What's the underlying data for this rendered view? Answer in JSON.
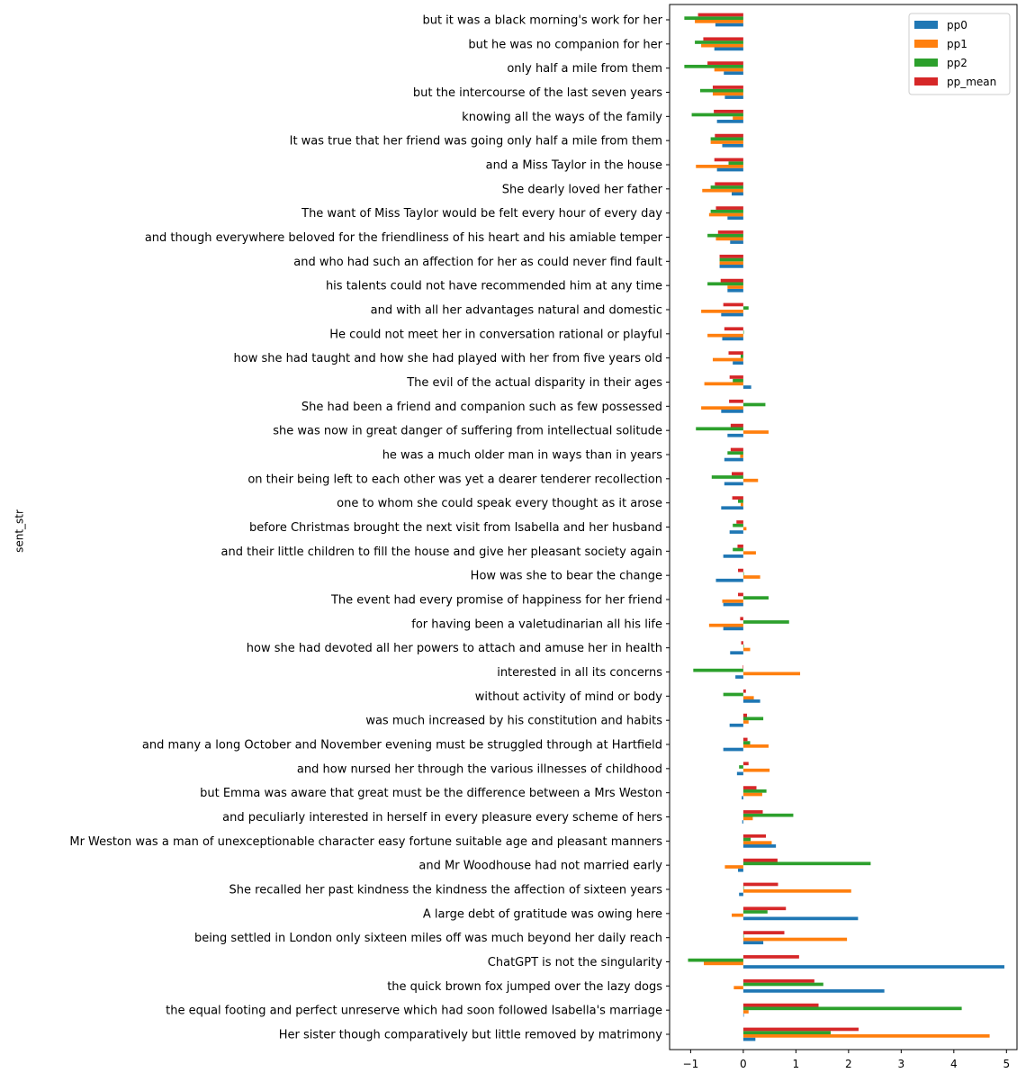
{
  "chart_data": {
    "type": "bar",
    "orientation": "horizontal",
    "ylabel": "sent_str",
    "xlabel": "",
    "xlim": [
      -1.4,
      5.2
    ],
    "xticks": [
      -1,
      0,
      1,
      2,
      3,
      4,
      5
    ],
    "xtick_labels": [
      "−1",
      "0",
      "1",
      "2",
      "3",
      "4",
      "5"
    ],
    "grid": false,
    "legend_position": "top-right",
    "categories": [
      "but it was a black morning's work for her",
      "but he was no companion for her",
      "only half a mile from them",
      "but the intercourse of the last seven years",
      "knowing all the ways of the family",
      "It was true that her friend was going only half a mile from them",
      "and a Miss Taylor in the house",
      "She dearly loved her father",
      "The want of Miss Taylor would be felt every hour of every day",
      "and though everywhere beloved for the friendliness of his heart and his amiable temper",
      "and who had such an affection for her as could never find fault",
      "his talents could not have recommended him at any time",
      "and with all her advantages natural and domestic",
      "He could not meet her in conversation rational or playful",
      "how she had taught and how she had played with her from five years old",
      "The evil of the actual disparity in their ages",
      "She had been a friend and companion such as few possessed",
      "she was now in great danger of suffering from intellectual solitude",
      "he was a much older man in ways than in years",
      "on their being left to each other was yet a dearer tenderer recollection",
      "one to whom she could speak every thought as it arose",
      "before Christmas brought the next visit from Isabella and her husband",
      "and their little children to fill the house and give her pleasant society again",
      "How was she to bear the change",
      "The event had every promise of happiness for her friend",
      "for having been a valetudinarian all his life",
      "how she had devoted all her powers to attach and amuse her in health",
      "interested in all its concerns",
      "without activity of mind or body",
      "was much increased by his constitution and habits",
      "and many a long October and November evening must be struggled through at Hartfield",
      "and how nursed her through the various illnesses of childhood",
      "but Emma was aware that great must be the difference between a Mrs Weston",
      "and peculiarly interested in herself in every pleasure every scheme of hers",
      "Mr Weston was a man of unexceptionable character easy fortune suitable age and pleasant manners",
      "and Mr Woodhouse had not married early",
      "She recalled her past kindness the kindness the affection of sixteen years",
      "A large debt of gratitude was owing here",
      "being settled in London only sixteen miles off was much beyond her daily reach",
      "ChatGPT is not the singularity",
      "the quick brown fox jumped over the lazy dogs",
      "the equal footing and perfect unreserve which had soon followed Isabella's marriage",
      "Her sister though comparatively but little removed by matrimony"
    ],
    "series": [
      {
        "name": "pp0",
        "color": "#1f77b4",
        "values": [
          -0.53,
          -0.55,
          -0.37,
          -0.35,
          -0.5,
          -0.4,
          -0.5,
          -0.22,
          -0.3,
          -0.25,
          -0.45,
          -0.3,
          -0.42,
          -0.4,
          -0.2,
          0.15,
          -0.42,
          -0.3,
          -0.36,
          -0.36,
          -0.42,
          -0.26,
          -0.38,
          -0.52,
          -0.38,
          -0.38,
          -0.25,
          -0.15,
          0.32,
          -0.26,
          -0.38,
          -0.12,
          -0.03,
          -0.02,
          0.62,
          -0.1,
          -0.08,
          2.18,
          0.38,
          4.96,
          2.68,
          0.0,
          0.23
        ]
      },
      {
        "name": "pp1",
        "color": "#ff7f0e",
        "values": [
          -0.92,
          -0.8,
          -0.55,
          -0.58,
          -0.2,
          -0.62,
          -0.9,
          -0.78,
          -0.65,
          -0.52,
          -0.45,
          -0.3,
          -0.8,
          -0.68,
          -0.58,
          -0.74,
          -0.8,
          0.48,
          -0.06,
          0.28,
          -0.05,
          0.06,
          0.24,
          0.32,
          -0.4,
          -0.65,
          0.13,
          1.08,
          0.2,
          0.1,
          0.48,
          0.5,
          0.36,
          0.18,
          0.54,
          -0.35,
          2.05,
          -0.22,
          1.97,
          -0.75,
          -0.18,
          0.1,
          4.68
        ]
      },
      {
        "name": "pp2",
        "color": "#2ca02c",
        "values": [
          -1.12,
          -0.92,
          -1.12,
          -0.82,
          -0.98,
          -0.62,
          -0.28,
          -0.62,
          -0.62,
          -0.68,
          -0.45,
          -0.68,
          0.1,
          0.0,
          -0.05,
          -0.2,
          0.42,
          -0.9,
          -0.3,
          -0.6,
          -0.1,
          -0.2,
          -0.2,
          0.0,
          0.48,
          0.87,
          0.0,
          -0.95,
          -0.38,
          0.38,
          0.13,
          -0.08,
          0.44,
          0.95,
          0.14,
          2.42,
          0.0,
          0.46,
          0.0,
          -1.05,
          1.52,
          4.15,
          1.66
        ]
      },
      {
        "name": "pp_mean",
        "color": "#d62728",
        "values": [
          -0.86,
          -0.76,
          -0.68,
          -0.58,
          -0.56,
          -0.54,
          -0.55,
          -0.54,
          -0.52,
          -0.48,
          -0.45,
          -0.43,
          -0.38,
          -0.36,
          -0.28,
          -0.26,
          -0.27,
          -0.24,
          -0.24,
          -0.22,
          -0.21,
          -0.13,
          -0.11,
          -0.1,
          -0.1,
          -0.06,
          -0.04,
          -0.01,
          0.05,
          0.07,
          0.08,
          0.1,
          0.25,
          0.37,
          0.43,
          0.65,
          0.66,
          0.81,
          0.78,
          1.06,
          1.35,
          1.43,
          2.19
        ]
      }
    ]
  }
}
